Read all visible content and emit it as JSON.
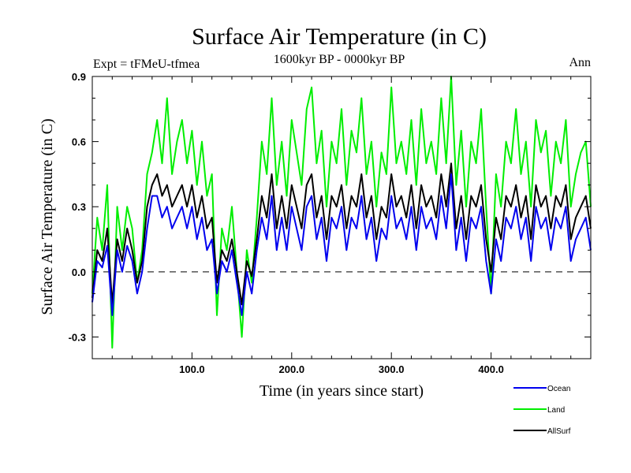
{
  "chart_data": {
    "type": "line",
    "title": "Surface Air Temperature (in C)",
    "subtitle": "1600kyr BP - 0000kyr BP",
    "left_annotation": "Expt = tFMeU-tfmea",
    "right_annotation": "Ann",
    "xlabel": "Time (in years since start)",
    "ylabel": "Surface Air Temperature (in C)",
    "xlim": [
      0,
      500
    ],
    "ylim": [
      -0.4,
      0.9
    ],
    "xticks": [
      100,
      200,
      300,
      400
    ],
    "xtick_labels": [
      "100.0",
      "200.0",
      "300.0",
      "400.0"
    ],
    "yticks": [
      -0.3,
      0.0,
      0.3,
      0.6,
      0.9
    ],
    "ytick_labels": [
      "-0.3",
      "0.0",
      "0.3",
      "0.6",
      "0.9"
    ],
    "reference_line": {
      "y": 0.0,
      "style": "dashed"
    },
    "legend_position": "bottom-right",
    "series": [
      {
        "name": "Land",
        "color": "#00ee00",
        "x": [
          0,
          5,
          10,
          15,
          20,
          25,
          30,
          35,
          40,
          45,
          50,
          55,
          60,
          65,
          70,
          75,
          80,
          85,
          90,
          95,
          100,
          105,
          110,
          115,
          120,
          125,
          130,
          135,
          140,
          145,
          150,
          155,
          160,
          165,
          170,
          175,
          180,
          185,
          190,
          195,
          200,
          205,
          210,
          215,
          220,
          225,
          230,
          235,
          240,
          245,
          250,
          255,
          260,
          265,
          270,
          275,
          280,
          285,
          290,
          295,
          300,
          305,
          310,
          315,
          320,
          325,
          330,
          335,
          340,
          345,
          350,
          355,
          360,
          365,
          370,
          375,
          380,
          385,
          390,
          395,
          400,
          405,
          410,
          415,
          420,
          425,
          430,
          435,
          440,
          445,
          450,
          455,
          460,
          465,
          470,
          475,
          480,
          485,
          490,
          495,
          500
        ],
        "values": [
          -0.1,
          0.25,
          0.1,
          0.4,
          -0.35,
          0.3,
          0.1,
          0.3,
          0.2,
          -0.05,
          0.1,
          0.45,
          0.55,
          0.7,
          0.5,
          0.8,
          0.45,
          0.6,
          0.7,
          0.5,
          0.65,
          0.4,
          0.6,
          0.35,
          0.45,
          -0.2,
          0.2,
          0.1,
          0.3,
          0.0,
          -0.3,
          0.1,
          -0.05,
          0.25,
          0.6,
          0.45,
          0.8,
          0.4,
          0.6,
          0.35,
          0.7,
          0.55,
          0.4,
          0.75,
          0.85,
          0.5,
          0.65,
          0.3,
          0.6,
          0.5,
          0.75,
          0.4,
          0.65,
          0.55,
          0.8,
          0.45,
          0.6,
          0.3,
          0.55,
          0.45,
          0.85,
          0.5,
          0.6,
          0.45,
          0.7,
          0.4,
          0.75,
          0.5,
          0.6,
          0.45,
          0.8,
          0.5,
          0.9,
          0.4,
          0.65,
          0.3,
          0.6,
          0.5,
          0.75,
          0.3,
          -0.1,
          0.45,
          0.3,
          0.6,
          0.5,
          0.75,
          0.45,
          0.6,
          0.3,
          0.7,
          0.55,
          0.65,
          0.35,
          0.6,
          0.5,
          0.7,
          0.3,
          0.45,
          0.55,
          0.6,
          0.3
        ]
      },
      {
        "name": "AllSurf",
        "color": "#000000",
        "x": [
          0,
          5,
          10,
          15,
          20,
          25,
          30,
          35,
          40,
          45,
          50,
          55,
          60,
          65,
          70,
          75,
          80,
          85,
          90,
          95,
          100,
          105,
          110,
          115,
          120,
          125,
          130,
          135,
          140,
          145,
          150,
          155,
          160,
          165,
          170,
          175,
          180,
          185,
          190,
          195,
          200,
          205,
          210,
          215,
          220,
          225,
          230,
          235,
          240,
          245,
          250,
          255,
          260,
          265,
          270,
          275,
          280,
          285,
          290,
          295,
          300,
          305,
          310,
          315,
          320,
          325,
          330,
          335,
          340,
          345,
          350,
          355,
          360,
          365,
          370,
          375,
          380,
          385,
          390,
          395,
          400,
          405,
          410,
          415,
          420,
          425,
          430,
          435,
          440,
          445,
          450,
          455,
          460,
          465,
          470,
          475,
          480,
          485,
          490,
          495,
          500
        ],
        "values": [
          -0.12,
          0.1,
          0.05,
          0.2,
          -0.15,
          0.15,
          0.05,
          0.2,
          0.1,
          -0.05,
          0.05,
          0.3,
          0.4,
          0.45,
          0.35,
          0.4,
          0.3,
          0.35,
          0.4,
          0.3,
          0.4,
          0.25,
          0.35,
          0.2,
          0.25,
          -0.05,
          0.1,
          0.05,
          0.15,
          0.0,
          -0.15,
          0.05,
          -0.02,
          0.15,
          0.35,
          0.25,
          0.45,
          0.2,
          0.35,
          0.2,
          0.4,
          0.3,
          0.2,
          0.4,
          0.45,
          0.25,
          0.35,
          0.15,
          0.35,
          0.3,
          0.4,
          0.2,
          0.35,
          0.3,
          0.45,
          0.25,
          0.35,
          0.15,
          0.3,
          0.25,
          0.45,
          0.3,
          0.35,
          0.25,
          0.4,
          0.2,
          0.4,
          0.3,
          0.35,
          0.25,
          0.45,
          0.3,
          0.5,
          0.2,
          0.35,
          0.15,
          0.35,
          0.3,
          0.4,
          0.15,
          0.0,
          0.25,
          0.15,
          0.35,
          0.3,
          0.4,
          0.25,
          0.35,
          0.15,
          0.4,
          0.3,
          0.35,
          0.2,
          0.35,
          0.3,
          0.4,
          0.15,
          0.25,
          0.3,
          0.35,
          0.2
        ]
      },
      {
        "name": "Ocean",
        "color": "#0000ee",
        "x": [
          0,
          5,
          10,
          15,
          20,
          25,
          30,
          35,
          40,
          45,
          50,
          55,
          60,
          65,
          70,
          75,
          80,
          85,
          90,
          95,
          100,
          105,
          110,
          115,
          120,
          125,
          130,
          135,
          140,
          145,
          150,
          155,
          160,
          165,
          170,
          175,
          180,
          185,
          190,
          195,
          200,
          205,
          210,
          215,
          220,
          225,
          230,
          235,
          240,
          245,
          250,
          255,
          260,
          265,
          270,
          275,
          280,
          285,
          290,
          295,
          300,
          305,
          310,
          315,
          320,
          325,
          330,
          335,
          340,
          345,
          350,
          355,
          360,
          365,
          370,
          375,
          380,
          385,
          390,
          395,
          400,
          405,
          410,
          415,
          420,
          425,
          430,
          435,
          440,
          445,
          450,
          455,
          460,
          465,
          470,
          475,
          480,
          485,
          490,
          495,
          500
        ],
        "values": [
          -0.14,
          0.05,
          0.02,
          0.12,
          -0.2,
          0.1,
          0.0,
          0.12,
          0.05,
          -0.1,
          0.0,
          0.2,
          0.35,
          0.35,
          0.25,
          0.3,
          0.2,
          0.25,
          0.3,
          0.2,
          0.3,
          0.15,
          0.25,
          0.1,
          0.15,
          -0.1,
          0.05,
          0.0,
          0.1,
          -0.05,
          -0.2,
          0.0,
          -0.1,
          0.1,
          0.25,
          0.15,
          0.35,
          0.1,
          0.25,
          0.1,
          0.3,
          0.2,
          0.1,
          0.3,
          0.35,
          0.15,
          0.25,
          0.05,
          0.25,
          0.2,
          0.3,
          0.1,
          0.25,
          0.2,
          0.35,
          0.15,
          0.25,
          0.05,
          0.2,
          0.15,
          0.35,
          0.2,
          0.25,
          0.15,
          0.3,
          0.1,
          0.3,
          0.2,
          0.25,
          0.15,
          0.35,
          0.2,
          0.45,
          0.1,
          0.25,
          0.05,
          0.25,
          0.2,
          0.3,
          0.05,
          -0.1,
          0.15,
          0.05,
          0.25,
          0.2,
          0.3,
          0.15,
          0.25,
          0.05,
          0.3,
          0.2,
          0.25,
          0.1,
          0.25,
          0.2,
          0.3,
          0.05,
          0.15,
          0.2,
          0.25,
          0.1
        ]
      }
    ],
    "legend_order": [
      "Ocean",
      "Land",
      "AllSurf"
    ]
  }
}
